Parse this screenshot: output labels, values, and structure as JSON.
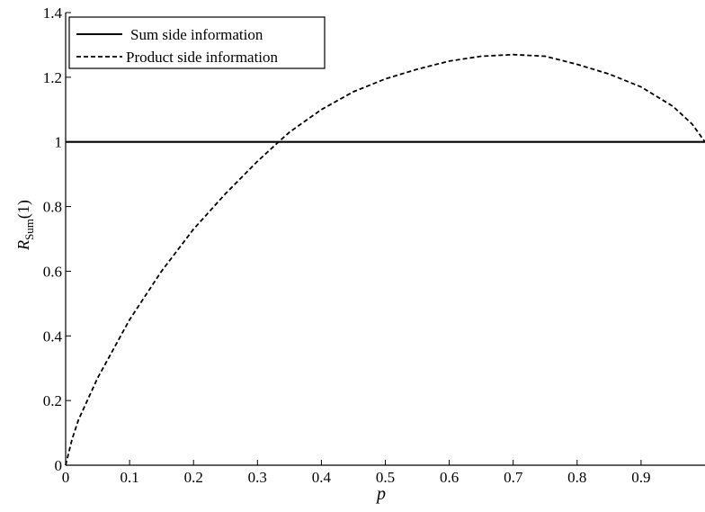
{
  "chart_data": {
    "type": "line",
    "title": "",
    "xlabel": "p",
    "ylabel": {
      "main": "R",
      "subscript": "Sum",
      "suffix": "(1)"
    },
    "xlim": [
      0,
      1
    ],
    "ylim": [
      0,
      1.4
    ],
    "x_ticks": [
      "0",
      "0.1",
      "0.2",
      "0.3",
      "0.4",
      "0.5",
      "0.6",
      "0.7",
      "0.8",
      "0.9"
    ],
    "y_ticks": [
      "0",
      "0.2",
      "0.4",
      "0.6",
      "0.8",
      "1",
      "1.2",
      "1.4"
    ],
    "grid": false,
    "legend_position": "top-left",
    "series": [
      {
        "name": "Sum side information",
        "style": "solid",
        "color": "#000000",
        "x": [
          0,
          1
        ],
        "y": [
          1,
          1
        ]
      },
      {
        "name": "Product side information",
        "style": "dashed",
        "color": "#000000",
        "x": [
          0,
          0.01,
          0.02,
          0.05,
          0.1,
          0.15,
          0.2,
          0.25,
          0.3,
          0.333,
          0.35,
          0.4,
          0.45,
          0.5,
          0.55,
          0.6,
          0.65,
          0.7,
          0.75,
          0.8,
          0.85,
          0.9,
          0.95,
          0.98,
          1.0
        ],
        "y": [
          0,
          0.08,
          0.14,
          0.27,
          0.45,
          0.6,
          0.73,
          0.84,
          0.94,
          1.0,
          1.03,
          1.1,
          1.155,
          1.195,
          1.225,
          1.25,
          1.265,
          1.27,
          1.265,
          1.24,
          1.21,
          1.17,
          1.11,
          1.055,
          1.0
        ]
      }
    ]
  }
}
